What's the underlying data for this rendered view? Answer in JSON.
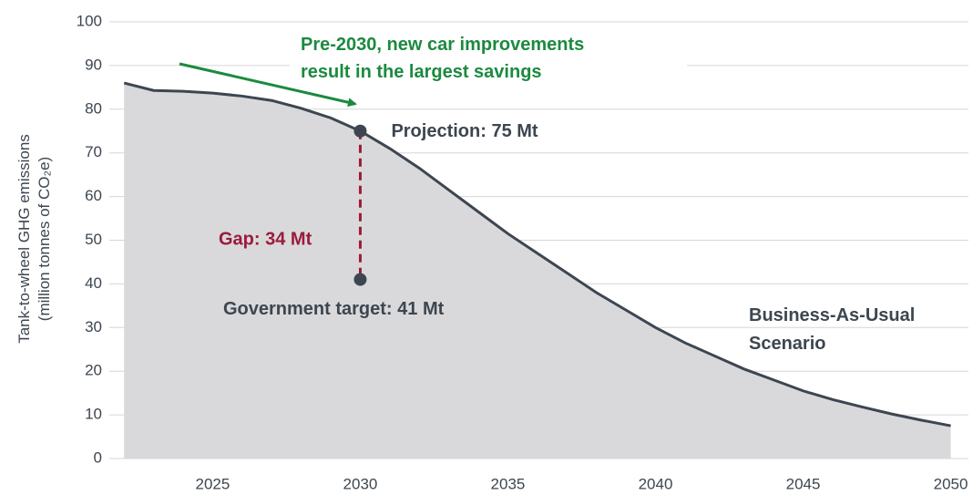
{
  "chart_data": {
    "type": "area",
    "y_label_lines": [
      "Tank-to-wheel GHG emissions",
      "(million tonnes of CO₂e)"
    ],
    "x": [
      2022,
      2023,
      2024,
      2025,
      2026,
      2027,
      2028,
      2029,
      2030,
      2031,
      2032,
      2033,
      2034,
      2035,
      2036,
      2037,
      2038,
      2039,
      2040,
      2041,
      2042,
      2043,
      2044,
      2045,
      2046,
      2047,
      2048,
      2049,
      2050
    ],
    "series": [
      {
        "name": "Business-As-Usual Scenario",
        "name_lines": [
          "Business-As-Usual",
          "Scenario"
        ],
        "color": "#3d4650",
        "fill": "#d9d9db",
        "values": [
          86,
          84.3,
          84.1,
          83.7,
          83,
          82,
          80.2,
          78,
          75,
          71,
          66.5,
          61.5,
          56.5,
          51.5,
          47,
          42.5,
          38,
          34,
          30,
          26.5,
          23.5,
          20.5,
          18,
          15.5,
          13.5,
          11.8,
          10.2,
          8.8,
          7.5
        ]
      }
    ],
    "xlim": [
      2021.5,
      2050.6
    ],
    "xticks": [
      2025,
      2030,
      2035,
      2040,
      2045,
      2050
    ],
    "ylim": [
      0,
      100
    ],
    "yticks": [
      0,
      10,
      20,
      30,
      40,
      50,
      60,
      70,
      80,
      90,
      100
    ],
    "grid": true,
    "annotations": {
      "insight_lines": [
        "Pre-2030, new car improvements",
        "result in the largest savings"
      ],
      "projection": {
        "x": 2030,
        "y": 75,
        "label": "Projection: 75 Mt"
      },
      "target": {
        "x": 2030,
        "y": 41,
        "label": "Government target: 41 Mt"
      },
      "gap": {
        "value": 34,
        "label": "Gap: 34 Mt"
      }
    }
  }
}
